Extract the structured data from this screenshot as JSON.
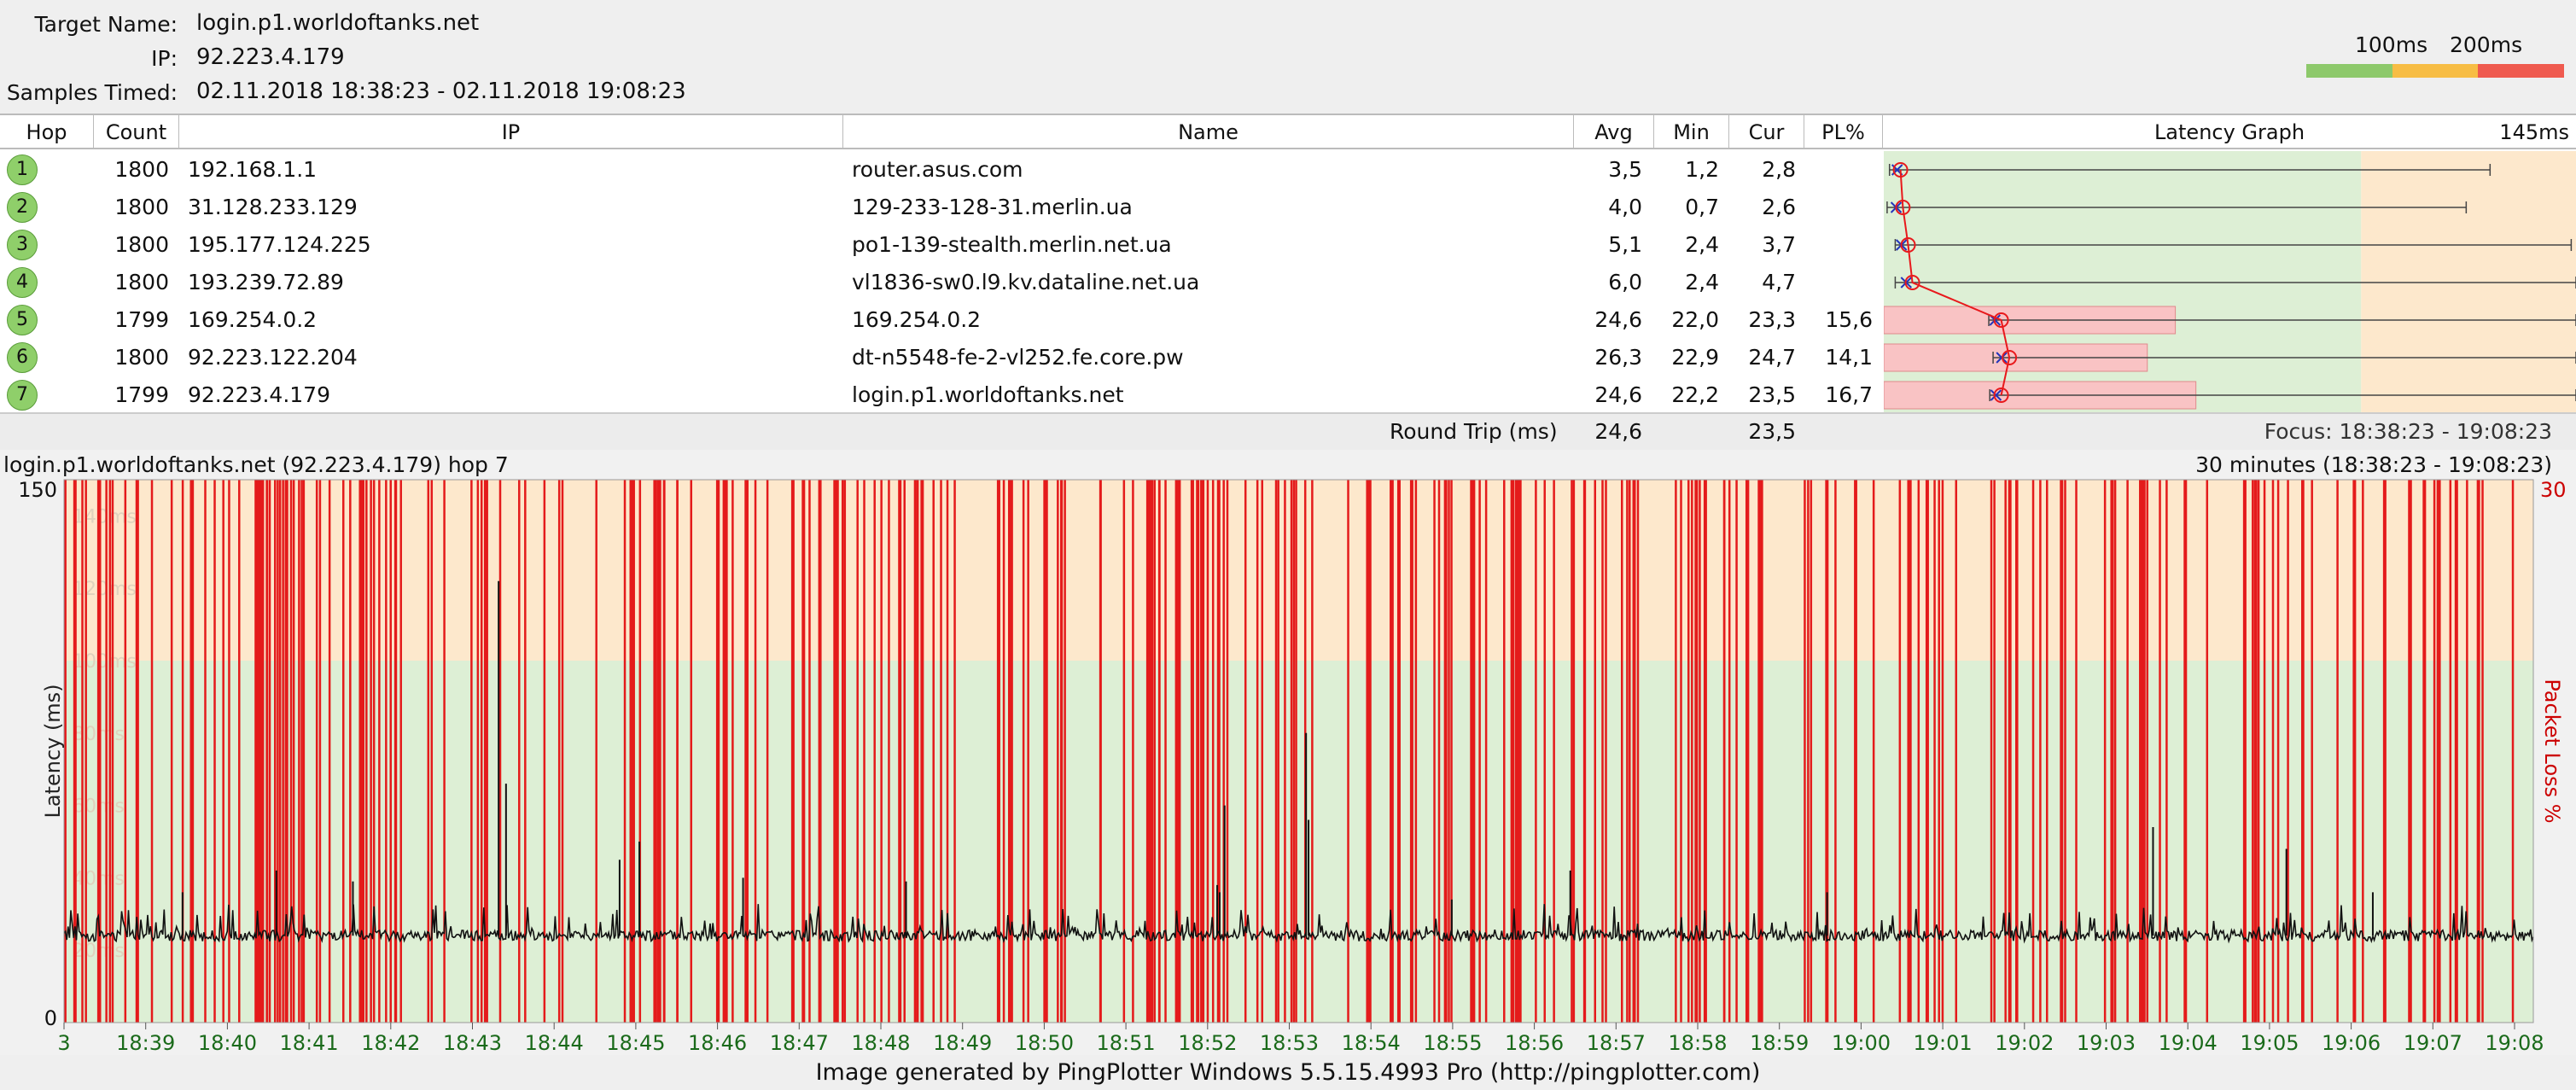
{
  "header": {
    "target_name_label": "Target Name:",
    "target_name": "login.p1.worldoftanks.net",
    "ip_label": "IP:",
    "ip": "92.223.4.179",
    "samples_label": "Samples Timed:",
    "samples": "02.11.2018 18:38:23 - 02.11.2018 19:08:23",
    "legend_100": "100ms",
    "legend_200": "200ms",
    "colors": {
      "good": "#8dc96b",
      "warn": "#f7bd45",
      "bad": "#ef5a4f"
    }
  },
  "table": {
    "columns": {
      "hop": "Hop",
      "count": "Count",
      "ip": "IP",
      "name": "Name",
      "avg": "Avg",
      "min": "Min",
      "cur": "Cur",
      "pl": "PL%",
      "graph": "Latency Graph",
      "graph_max": "145ms"
    },
    "rows": [
      {
        "hop": "1",
        "count": "1800",
        "ip": "192.168.1.1",
        "name": "router.asus.com",
        "avg": "3,5",
        "min": "1,2",
        "cur": "2,8",
        "pl": "",
        "pl_frac": 0,
        "lat": {
          "min": 1.2,
          "avg": 3.5,
          "cur": 2.8,
          "max": 127
        }
      },
      {
        "hop": "2",
        "count": "1800",
        "ip": "31.128.233.129",
        "name": "129-233-128-31.merlin.ua",
        "avg": "4,0",
        "min": "0,7",
        "cur": "2,6",
        "pl": "",
        "pl_frac": 0,
        "lat": {
          "min": 0.7,
          "avg": 4.0,
          "cur": 2.6,
          "max": 122
        }
      },
      {
        "hop": "3",
        "count": "1800",
        "ip": "195.177.124.225",
        "name": "po1-139-stealth.merlin.net.ua",
        "avg": "5,1",
        "min": "2,4",
        "cur": "3,7",
        "pl": "",
        "pl_frac": 0,
        "lat": {
          "min": 2.4,
          "avg": 5.1,
          "cur": 3.7,
          "max": 144
        }
      },
      {
        "hop": "4",
        "count": "1800",
        "ip": "193.239.72.89",
        "name": "vl1836-sw0.l9.kv.dataline.net.ua",
        "avg": "6,0",
        "min": "2,4",
        "cur": "4,7",
        "pl": "",
        "pl_frac": 0,
        "lat": {
          "min": 2.4,
          "avg": 6.0,
          "cur": 4.7,
          "max": 154
        }
      },
      {
        "hop": "5",
        "count": "1799",
        "ip": "169.254.0.2",
        "name": "169.254.0.2",
        "avg": "24,6",
        "min": "22,0",
        "cur": "23,3",
        "pl": "15,6",
        "pl_frac": 0.156,
        "lat": {
          "min": 22.0,
          "avg": 24.6,
          "cur": 23.3,
          "max": 150
        }
      },
      {
        "hop": "6",
        "count": "1800",
        "ip": "92.223.122.204",
        "name": "dt-n5548-fe-2-vl252.fe.core.pw",
        "avg": "26,3",
        "min": "22,9",
        "cur": "24,7",
        "pl": "14,1",
        "pl_frac": 0.141,
        "lat": {
          "min": 22.9,
          "avg": 26.3,
          "cur": 24.7,
          "max": 157
        }
      },
      {
        "hop": "7",
        "count": "1799",
        "ip": "92.223.4.179",
        "name": "login.p1.worldoftanks.net",
        "avg": "24,6",
        "min": "22,2",
        "cur": "23,5",
        "pl": "16,7",
        "pl_frac": 0.167,
        "lat": {
          "min": 22.2,
          "avg": 24.6,
          "cur": 23.5,
          "max": 147
        }
      }
    ],
    "round_trip_label": "Round Trip (ms)",
    "round_trip_avg": "24,6",
    "round_trip_cur": "23,5",
    "focus": "Focus: 18:38:23 - 19:08:23"
  },
  "chart_data": {
    "type": "line",
    "title": "login.p1.worldoftanks.net (92.223.4.179) hop 7",
    "range_label": "30 minutes (18:38:23 - 19:08:23)",
    "ylabel": "Latency (ms)",
    "y2label": "Packet Loss %",
    "ylim": [
      0,
      150
    ],
    "y2lim": [
      0,
      30
    ],
    "y_tick_labels": [
      "150",
      "0"
    ],
    "y2_tick_labels": [
      "30"
    ],
    "faint_ticks": [
      "140ms",
      "120ms",
      "100ms",
      "80ms",
      "60ms",
      "40ms",
      "20ms"
    ],
    "faint_tick_values": [
      140,
      120,
      100,
      80,
      60,
      40,
      20
    ],
    "x_ticks": [
      "3",
      "18:39",
      "18:40",
      "18:41",
      "18:42",
      "18:43",
      "18:44",
      "18:45",
      "18:46",
      "18:47",
      "18:48",
      "18:49",
      "18:50",
      "18:51",
      "18:52",
      "18:53",
      "18:54",
      "18:55",
      "18:56",
      "18:57",
      "18:58",
      "18:59",
      "19:00",
      "19:01",
      "19:02",
      "19:03",
      "19:04",
      "19:05",
      "19:06",
      "19:07",
      "19:08"
    ],
    "zone_warn_ms": 100,
    "baseline_ms": 24,
    "spikes": [
      {
        "t": 0.048,
        "v": 36
      },
      {
        "t": 0.086,
        "v": 42
      },
      {
        "t": 0.117,
        "v": 39
      },
      {
        "t": 0.176,
        "v": 122
      },
      {
        "t": 0.179,
        "v": 66
      },
      {
        "t": 0.225,
        "v": 45
      },
      {
        "t": 0.233,
        "v": 50
      },
      {
        "t": 0.275,
        "v": 40
      },
      {
        "t": 0.341,
        "v": 39
      },
      {
        "t": 0.467,
        "v": 38
      },
      {
        "t": 0.468,
        "v": 36
      },
      {
        "t": 0.47,
        "v": 60
      },
      {
        "t": 0.503,
        "v": 80
      },
      {
        "t": 0.504,
        "v": 56
      },
      {
        "t": 0.562,
        "v": 34
      },
      {
        "t": 0.61,
        "v": 42
      },
      {
        "t": 0.714,
        "v": 36
      },
      {
        "t": 0.846,
        "v": 54
      },
      {
        "t": 0.9,
        "v": 48
      },
      {
        "t": 0.935,
        "v": 36
      }
    ],
    "loss_events_count": 300
  },
  "footer": "Image generated by PingPlotter Windows 5.5.15.4993 Pro (http://pingplotter.com)"
}
